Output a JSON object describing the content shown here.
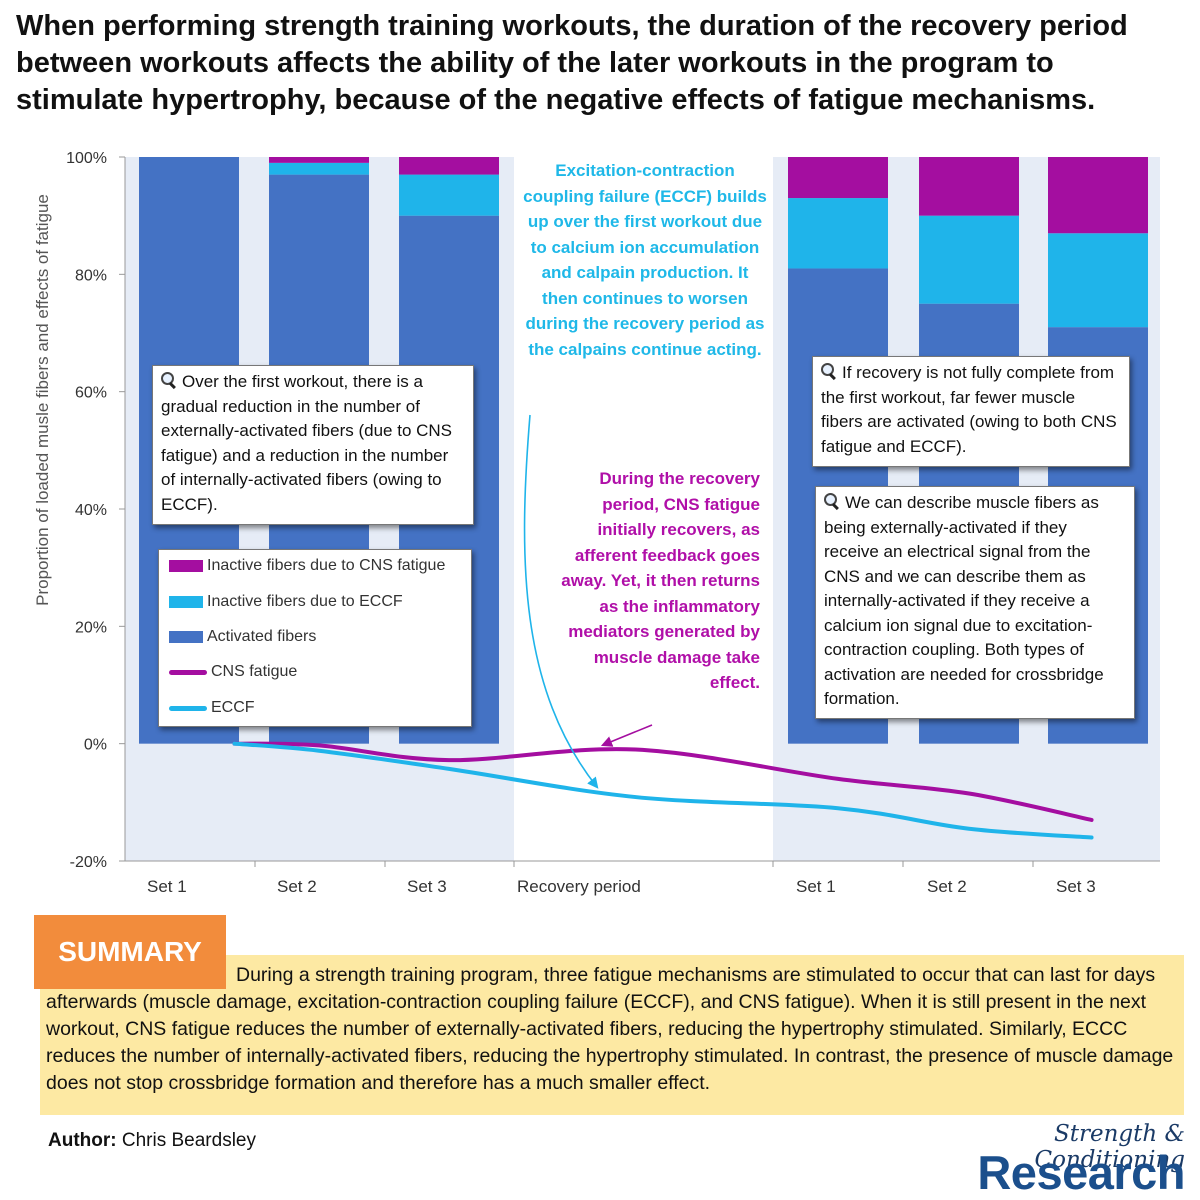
{
  "headline": "When performing strength training workouts, the duration of the recovery period between workouts affects the ability of the later workouts in the program to stimulate hypertrophy, because of the negative effects of fatigue mechanisms.",
  "chart_data": {
    "type": "bar",
    "stacked": true,
    "ylabel": "Proportion of loaded musle fibers and effects of fatigue",
    "ylim": [
      -20,
      100
    ],
    "y_ticks": [
      "-20%",
      "0%",
      "20%",
      "40%",
      "60%",
      "80%",
      "100%"
    ],
    "y_tick_values": [
      -20,
      0,
      20,
      40,
      60,
      80,
      100
    ],
    "categories": [
      "Set 1",
      "Set 2",
      "Set 3",
      "Recovery period",
      "Set 1",
      "Set 2",
      "Set 3"
    ],
    "series": [
      {
        "name": "Activated fibers",
        "kind": "bar",
        "color": "#4472c4",
        "values": [
          100,
          97,
          90,
          null,
          81,
          75,
          71
        ]
      },
      {
        "name": "Inactive fibers due to ECCF",
        "kind": "bar",
        "color": "#1fb4ea",
        "values": [
          0,
          2,
          7,
          null,
          12,
          15,
          16
        ]
      },
      {
        "name": "Inactive fibers due to CNS fatigue",
        "kind": "bar",
        "color": "#a40ea0",
        "values": [
          0,
          1,
          3,
          null,
          7,
          10,
          13
        ]
      },
      {
        "name": "CNS fatigue",
        "kind": "line",
        "color": "#a40ea0",
        "x": [
          0.35,
          1,
          2,
          3.2,
          4,
          5,
          5.95
        ],
        "values": [
          0,
          -0.3,
          -2.8,
          -1,
          -6,
          -8.5,
          -13
        ]
      },
      {
        "name": "ECCF",
        "kind": "line",
        "color": "#1fb4ea",
        "x": [
          0.35,
          1,
          2,
          3.2,
          4,
          5,
          5.95
        ],
        "values": [
          0,
          -1.2,
          -4.3,
          -9.1,
          -11,
          -14.5,
          -16
        ]
      }
    ],
    "grid": false,
    "legend_position": "left, mid-chart"
  },
  "annotations": {
    "eccf_callout": "Excitation-contraction coupling failure (ECCF) builds up over the first workout due to calcium ion accumulation and calpain production. It then continues to worsen during the recovery period as the calpains continue acting.",
    "cns_callout": "During the recovery period, CNS fatigue initially recovers, as afferent feedback goes away. Yet, it then returns as the inflammatory mediators generated by muscle damage take effect.",
    "note_first_workout": "Over the first workout, there is a gradual reduction in the number of externally-activated fibers (due to CNS fatigue) and a reduction in the number of internally-activated fibers (owing to ECCF).",
    "note_recovery": "If recovery is not fully complete from the first workout, far fewer muscle fibers are activated (owing to both CNS fatigue and ECCF).",
    "note_activation": "We can describe muscle fibers as being externally-activated if they receive an electrical signal from the CNS and we can describe them as internally-activated if they receive a calcium ion signal due to excitation-contraction coupling. Both types of activation are needed for crossbridge formation.",
    "magnifier_icon": "magnifying-glass-icon"
  },
  "legend": [
    {
      "label": "Inactive fibers due to CNS fatigue",
      "type": "bar",
      "color": "#a40ea0"
    },
    {
      "label": "Inactive fibers due to ECCF",
      "type": "bar",
      "color": "#1fb4ea"
    },
    {
      "label": "Activated fibers",
      "type": "bar",
      "color": "#4472c4"
    },
    {
      "label": "CNS fatigue",
      "type": "line",
      "color": "#a40ea0"
    },
    {
      "label": "ECCF",
      "type": "line",
      "color": "#1fb4ea"
    }
  ],
  "summary": {
    "tab_label": "SUMMARY",
    "text": "During a strength training program, three fatigue mechanisms are stimulated to occur that can last for days afterwards (muscle damage, excitation-contraction coupling failure (ECCF), and CNS fatigue). When it is still present in the next workout, CNS fatigue reduces the number of externally-activated fibers, reducing the hypertrophy stimulated. Similarly, ECCC reduces the number of internally-activated fibers, reducing the hypertrophy stimulated. In contrast, the presence of muscle damage does not stop crossbridge formation and therefore has a much smaller effect."
  },
  "author": {
    "label": "Author:",
    "name": "Chris Beardsley"
  },
  "brand": {
    "line1": "Strength & Conditioning",
    "line2": "Research"
  },
  "colors": {
    "background_band": "#e6ecf6",
    "summary_tab": "#f28c3c",
    "summary_box": "#fde9a3",
    "brand": "#1b4f8c"
  }
}
